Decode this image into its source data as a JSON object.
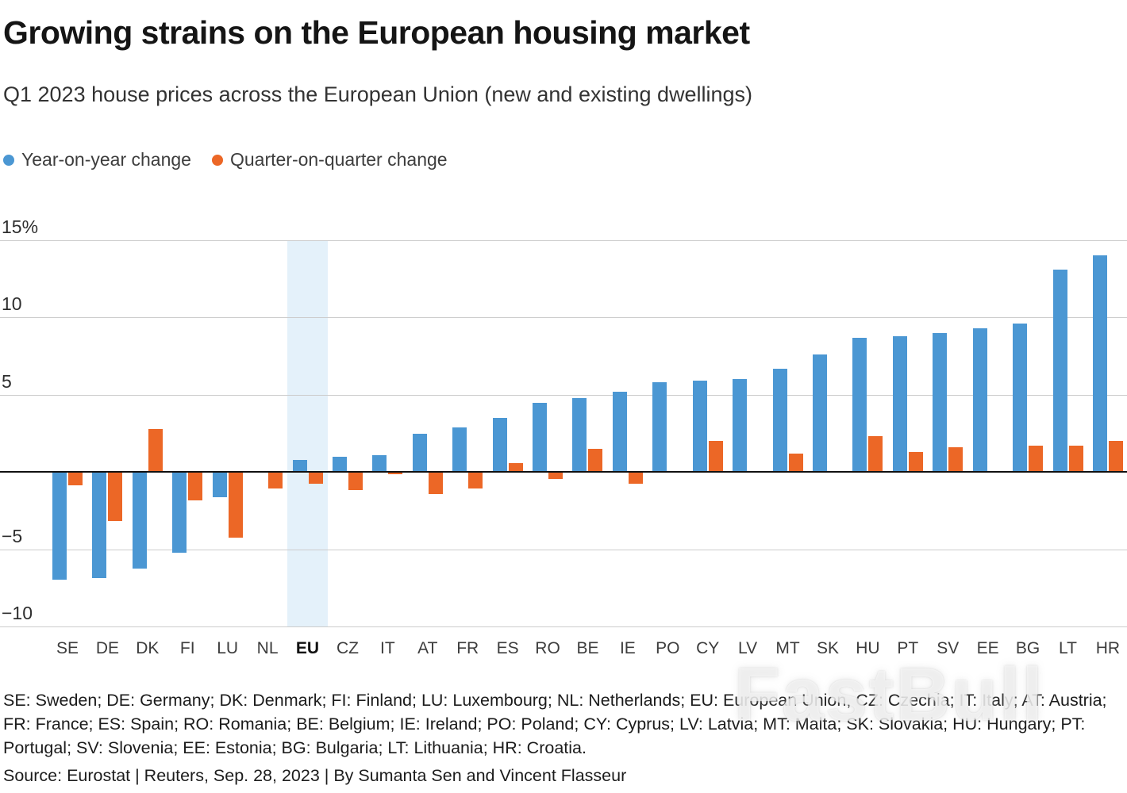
{
  "header": {
    "title": "Growing strains on the European housing market",
    "subtitle": "Q1 2023 house prices across the European Union (new and existing dwellings)"
  },
  "legend": [
    {
      "label": "Year-on-year change",
      "color": "#4b97d3"
    },
    {
      "label": "Quarter-on-quarter change",
      "color": "#ec6726"
    }
  ],
  "chart_data": {
    "type": "bar",
    "title": "Q1 2023 house prices across the European Union (new and existing dwellings)",
    "categories": [
      "SE",
      "DE",
      "DK",
      "FI",
      "LU",
      "NL",
      "EU",
      "CZ",
      "IT",
      "AT",
      "FR",
      "ES",
      "RO",
      "BE",
      "IE",
      "PO",
      "CY",
      "LV",
      "MT",
      "SK",
      "HU",
      "PT",
      "SV",
      "EE",
      "BG",
      "LT",
      "HR"
    ],
    "series": [
      {
        "name": "Year-on-year change",
        "color": "#4b97d3",
        "values": [
          -6.9,
          -6.8,
          -6.2,
          -5.2,
          -1.6,
          0.0,
          0.8,
          1.0,
          1.1,
          2.5,
          2.9,
          3.5,
          4.5,
          4.8,
          5.2,
          5.8,
          5.9,
          6.0,
          6.7,
          7.6,
          8.7,
          8.8,
          9.0,
          9.3,
          9.6,
          13.1,
          14.0
        ]
      },
      {
        "name": "Quarter-on-quarter change",
        "color": "#ec6726",
        "values": [
          -0.8,
          -3.1,
          2.8,
          -1.8,
          -4.2,
          -1.0,
          -0.7,
          -1.1,
          -0.1,
          -1.4,
          -1.0,
          0.6,
          -0.4,
          1.5,
          -0.7,
          0.0,
          2.0,
          0.0,
          1.2,
          0.0,
          2.3,
          1.3,
          1.6,
          0.0,
          1.7,
          1.7,
          2.0
        ]
      }
    ],
    "ylim": [
      -10,
      15
    ],
    "y_ticks": [
      {
        "value": 15,
        "label": "15%"
      },
      {
        "value": 10,
        "label": "10"
      },
      {
        "value": 5,
        "label": "5"
      },
      {
        "value": -5,
        "label": "−5"
      },
      {
        "value": -10,
        "label": "−10"
      }
    ],
    "grid": true,
    "legend_position": "top",
    "highlight_category": "EU",
    "highlight_color": "#e4f1fa"
  },
  "footnote": "SE: Sweden; DE: Germany; DK: Denmark; FI: Finland; LU: Luxembourg; NL: Netherlands; EU: European Union, CZ: Czechia; IT: Italy; AT: Austria; FR: France; ES: Spain; RO: Romania; BE: Belgium; IE: Ireland; PO: Poland; CY: Cyprus; LV: Latvia; MT: Malta; SK: Slovakia; HU: Hungary; PT: Portugal; SV: Slovenia; EE: Estonia; BG: Bulgaria; LT: Lithuania; HR: Croatia.",
  "source": "Source: Eurostat | Reuters, Sep. 28, 2023 | By Sumanta Sen and Vincent Flasseur",
  "watermark": "FastBull"
}
